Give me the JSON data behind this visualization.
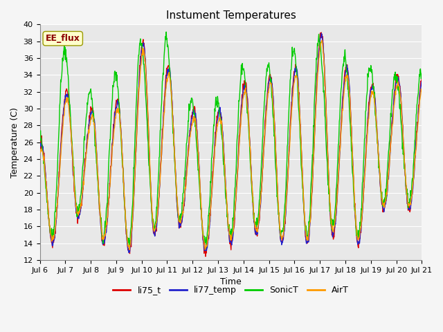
{
  "title": "Instument Temperatures",
  "xlabel": "Time",
  "ylabel": "Temperature (C)",
  "ylim": [
    12,
    40
  ],
  "xlim": [
    0,
    15
  ],
  "annotation": "EE_flux",
  "plot_bg": "#e8e8e8",
  "fig_bg": "#f5f5f5",
  "legend_labels": [
    "li75_t",
    "li77_temp",
    "SonicT",
    "AirT"
  ],
  "line_colors": [
    "#dd0000",
    "#2222cc",
    "#00cc00",
    "#ff9900"
  ],
  "x_tick_labels": [
    "Jul 6",
    "Jul 7",
    "Jul 8",
    "Jul 9",
    "Jul 10",
    "Jul 11",
    "Jul 12",
    "Jul 13",
    "Jul 14",
    "Jul 15",
    "Jul 16",
    "Jul 17",
    "Jul 18",
    "Jul 19",
    "Jul 20",
    "Jul 21"
  ],
  "y_ticks": [
    12,
    14,
    16,
    18,
    20,
    22,
    24,
    26,
    28,
    30,
    32,
    34,
    36,
    38,
    40
  ],
  "title_fontsize": 11,
  "axis_fontsize": 9,
  "tick_fontsize": 8,
  "linewidth": 1.0,
  "day_peaks": [
    26,
    32,
    30,
    31,
    38,
    35,
    30,
    30,
    33,
    34,
    35,
    39,
    35,
    33,
    34
  ],
  "day_troughs": [
    16,
    14,
    17,
    14,
    13,
    15,
    16,
    13,
    14,
    15,
    14,
    14,
    15,
    14,
    18
  ],
  "sonic_extra": [
    1,
    5,
    2,
    3,
    0,
    3,
    1,
    1,
    2,
    1,
    2,
    -1,
    1,
    2,
    0
  ]
}
